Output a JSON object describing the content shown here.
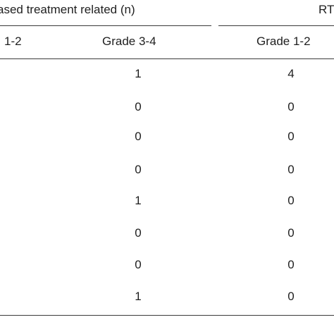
{
  "table": {
    "group_headers": [
      "ased treatment related (n)",
      "RT"
    ],
    "column_headers": [
      "1-2",
      "Grade 3-4",
      "Grade 1-2"
    ],
    "rows": [
      [
        "1",
        "4"
      ],
      [
        "0",
        "0"
      ],
      [
        "0",
        "0"
      ],
      [
        "0",
        "0"
      ],
      [
        "1",
        "0"
      ],
      [
        "0",
        "0"
      ],
      [
        "0",
        "0"
      ],
      [
        "1",
        "0"
      ]
    ]
  }
}
